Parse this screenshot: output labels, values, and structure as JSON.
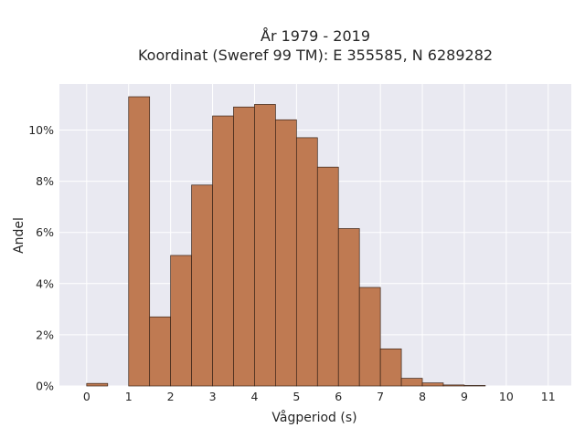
{
  "chart_data": {
    "type": "bar",
    "title_lines": [
      "År 1979 - 2019",
      "Koordinat (Sweref 99 TM): E 355585, N 6289282"
    ],
    "xlabel": "Vågperiod (s)",
    "ylabel": "Andel",
    "bin_width": 0.5,
    "bins_start": [
      0,
      1,
      1.5,
      2,
      2.5,
      3,
      3.5,
      4,
      4.5,
      5,
      5.5,
      6,
      6.5,
      7,
      7.5,
      8,
      8.5,
      9
    ],
    "values": [
      0.1,
      11.3,
      2.7,
      5.1,
      7.85,
      10.55,
      10.9,
      11.0,
      10.4,
      9.7,
      8.55,
      6.15,
      3.85,
      1.45,
      0.3,
      0.12,
      0.04,
      0.02
    ],
    "xlim": [
      -0.65,
      11.55
    ],
    "ylim": [
      0,
      11.8
    ],
    "xticks": [
      0,
      1,
      2,
      3,
      4,
      5,
      6,
      7,
      8,
      9,
      10,
      11
    ],
    "xtick_labels": [
      "0",
      "1",
      "2",
      "3",
      "4",
      "5",
      "6",
      "7",
      "8",
      "9",
      "10",
      "11"
    ],
    "yticks": [
      0,
      2,
      4,
      6,
      8,
      10
    ],
    "ytick_labels": [
      "0%",
      "2%",
      "4%",
      "6%",
      "8%",
      "10%"
    ],
    "grid": true,
    "colors": {
      "bar_fill": "#bf7a52",
      "bar_edge": "#3a2418",
      "plot_bg": "#e9e9f1",
      "grid": "#ffffff"
    }
  }
}
